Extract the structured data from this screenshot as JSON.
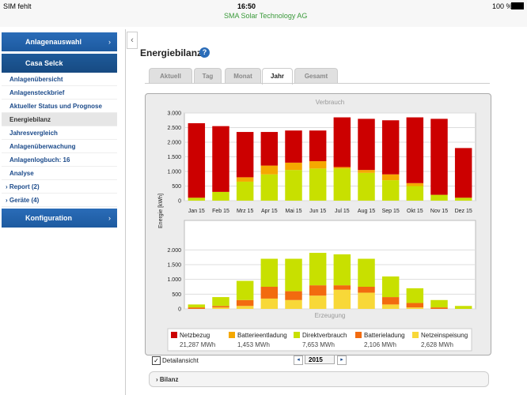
{
  "status_bar": {
    "carrier": "SIM fehlt",
    "time": "16:50",
    "battery": "100 %",
    "site": "SMA Solar Technology AG"
  },
  "sidebar": {
    "plant_selector": "Anlagenauswahl",
    "plant": "Casa Selck",
    "items": [
      "Anlagenübersicht",
      "Anlagensteckbrief",
      "Aktueller Status und Prognose",
      "Energiebilanz",
      "Jahresvergleich",
      "Anlagenüberwachung",
      "Anlagenlogbuch: 16",
      "Analyse",
      "Report (2)",
      "Geräte (4)"
    ],
    "configuration": "Konfiguration"
  },
  "page": {
    "title": "Energiebilanz",
    "tabs": [
      "Aktuell",
      "Tag",
      "Monat",
      "Jahr",
      "Gesamt"
    ],
    "detail_view": "Detailansicht",
    "year": "2015",
    "section": "Bilanz"
  },
  "y_axis_label": "Energie [kWh]",
  "legend_totals": [
    "21,287 MWh",
    "1,453 MWh",
    "7,653 MWh",
    "2,106 MWh",
    "2,628 MWh"
  ],
  "chart_data": [
    {
      "type": "bar",
      "stacked": true,
      "title": "Verbrauch",
      "grid": true,
      "categories": [
        "Jan 15",
        "Feb 15",
        "Mrz 15",
        "Apr 15",
        "Mai 15",
        "Jun 15",
        "Jul 15",
        "Aug 15",
        "Sep 15",
        "Okt 15",
        "Nov 15",
        "Dez 15"
      ],
      "ylim": [
        0,
        3000
      ],
      "yticks": [
        0,
        500,
        {
          "value": 1000,
          "label": "1.000"
        },
        {
          "value": 1500,
          "label": "1.500"
        },
        {
          "value": 2000,
          "label": "2.000"
        },
        {
          "value": 2500,
          "label": "2.500"
        },
        {
          "value": 3000,
          "label": "3.000"
        }
      ],
      "series": [
        {
          "name": "Direktverbrauch",
          "color": "#c8e000",
          "values": [
            100,
            300,
            650,
            900,
            1050,
            1100,
            1100,
            950,
            700,
            500,
            200,
            100
          ]
        },
        {
          "name": "Batterieentladung",
          "color": "#f5a800",
          "values": [
            0,
            0,
            150,
            300,
            250,
            250,
            50,
            100,
            200,
            100,
            0,
            0
          ]
        },
        {
          "name": "Netzbezug",
          "color": "#cc0000",
          "values": [
            2550,
            2250,
            1550,
            1150,
            1100,
            1050,
            1700,
            1750,
            1850,
            2250,
            2600,
            1700
          ]
        }
      ]
    },
    {
      "type": "bar",
      "stacked": true,
      "title": "Erzeugung",
      "grid": true,
      "ylim": [
        0,
        3000
      ],
      "yticks": [
        0,
        500,
        {
          "value": 1000,
          "label": "1.000"
        },
        {
          "value": 1500,
          "label": "1.500"
        },
        {
          "value": 2000,
          "label": "2.000"
        }
      ],
      "series": [
        {
          "name": "Netzeinspeisung",
          "color": "#f8d838",
          "values": [
            0,
            50,
            100,
            350,
            300,
            450,
            650,
            550,
            150,
            50,
            0,
            0
          ]
        },
        {
          "name": "Batterieladung",
          "color": "#f26b0f",
          "values": [
            50,
            50,
            200,
            400,
            300,
            350,
            150,
            200,
            250,
            150,
            50,
            0
          ]
        },
        {
          "name": "Direktverbrauch",
          "color": "#c8e000",
          "values": [
            100,
            300,
            650,
            950,
            1100,
            1100,
            1050,
            950,
            700,
            500,
            250,
            100
          ]
        }
      ]
    }
  ]
}
